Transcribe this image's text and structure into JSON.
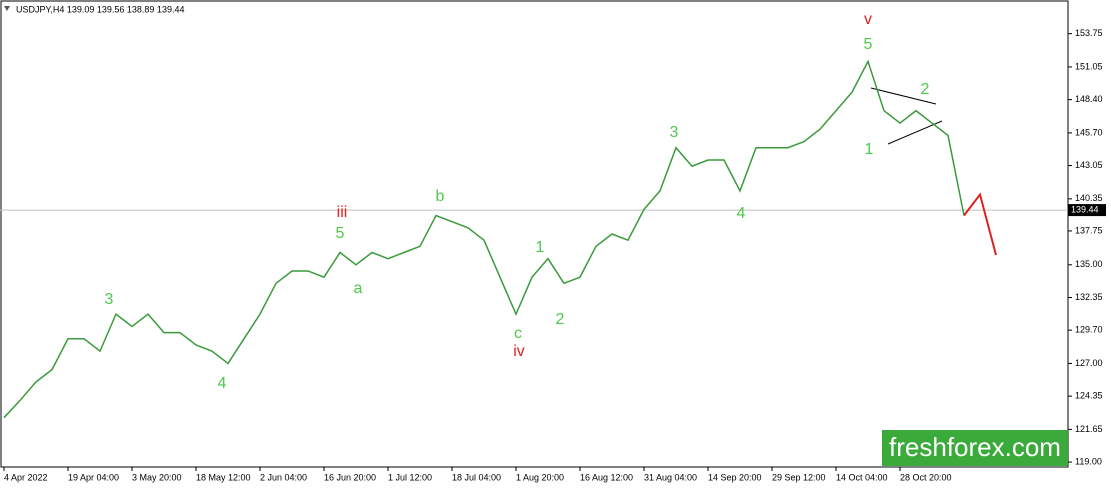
{
  "chart_data": {
    "type": "line",
    "title": "USDJPY,H4  139.09 139.56 138.89 139.44",
    "categories": [
      "4 Apr 2022",
      null,
      null,
      null,
      "19 Apr 04:00",
      null,
      null,
      null,
      "3 May 20:00",
      null,
      null,
      null,
      "18 May 12:00",
      null,
      null,
      null,
      "2 Jun 04:00",
      null,
      null,
      null,
      "16 Jun 20:00",
      null,
      null,
      null,
      "1 Jul 12:00",
      null,
      null,
      null,
      "18 Jul 04:00",
      null,
      null,
      null,
      "1 Aug 20:00",
      null,
      null,
      null,
      "16 Aug 12:00",
      null,
      null,
      null,
      "31 Aug 04:00",
      null,
      null,
      null,
      "14 Sep 20:00",
      null,
      null,
      null,
      "29 Sep 12:00",
      null,
      null,
      null,
      "14 Oct 04:00",
      null,
      null,
      null,
      "28 Oct 20:00",
      null,
      null,
      null,
      null,
      null,
      null
    ],
    "series": [
      {
        "color": "#3a9a3a",
        "values": [
          122.6,
          124,
          125.5,
          126.5,
          129,
          129,
          128,
          131,
          130,
          131,
          129.5,
          129.5,
          128.5,
          128,
          127,
          129,
          131,
          133.5,
          134.5,
          134.5,
          134,
          136,
          135,
          136,
          135.5,
          136,
          136.5,
          139,
          138.5,
          138,
          137,
          134,
          131,
          134,
          135.5,
          133.5,
          134,
          136.5,
          137.5,
          137,
          139.5,
          141,
          144.5,
          143,
          143.5,
          143.5,
          141,
          144.5,
          144.5,
          144.5,
          145,
          146,
          147.5,
          149,
          151.5,
          147.5,
          146.5,
          147.5,
          146.5,
          145.5,
          139,
          null,
          null
        ]
      },
      {
        "color": "#e0201e",
        "values": [
          null,
          null,
          null,
          null,
          null,
          null,
          null,
          null,
          null,
          null,
          null,
          null,
          null,
          null,
          null,
          null,
          null,
          null,
          null,
          null,
          null,
          null,
          null,
          null,
          null,
          null,
          null,
          null,
          null,
          null,
          null,
          null,
          null,
          null,
          null,
          null,
          null,
          null,
          null,
          null,
          null,
          null,
          null,
          null,
          null,
          null,
          null,
          null,
          null,
          null,
          null,
          null,
          null,
          null,
          null,
          null,
          null,
          null,
          null,
          null,
          139,
          140.7,
          135.8
        ]
      }
    ],
    "ylim": [
      118.6,
      156.4
    ],
    "yticks": [
      {
        "value": 119,
        "label": "119.00"
      },
      {
        "value": 121.65,
        "label": "121.65"
      },
      {
        "value": 124.35,
        "label": "124.35"
      },
      {
        "value": 127,
        "label": "127.00"
      },
      {
        "value": 129.7,
        "label": "129.70"
      },
      {
        "value": 132.35,
        "label": "132.35"
      },
      {
        "value": 135,
        "label": "135.00"
      },
      {
        "value": 137.75,
        "label": "137.75"
      },
      {
        "value": 140.35,
        "label": "140.35"
      },
      {
        "value": 143.05,
        "label": "143.05"
      },
      {
        "value": 145.7,
        "label": "145.70"
      },
      {
        "value": 148.4,
        "label": "148.40"
      },
      {
        "value": 151.05,
        "label": "151.05"
      },
      {
        "value": 153.75,
        "label": "153.75"
      }
    ],
    "current_price": 139.44,
    "annotations": [
      {
        "text": "v",
        "color": "#e0201e"
      },
      {
        "text": "5",
        "color": "#4ec94e"
      },
      {
        "text": "2",
        "color": "#4ec94e"
      },
      {
        "text": "1",
        "color": "#4ec94e"
      },
      {
        "text": "4",
        "color": "#4ec94e"
      },
      {
        "text": "3",
        "color": "#4ec94e"
      },
      {
        "text": "b",
        "color": "#4ec94e"
      },
      {
        "text": "iii",
        "color": "#e0201e"
      },
      {
        "text": "5",
        "color": "#4ec94e"
      },
      {
        "text": "a",
        "color": "#4ec94e"
      },
      {
        "text": "1",
        "color": "#4ec94e"
      },
      {
        "text": "c",
        "color": "#4ec94e"
      },
      {
        "text": "iv",
        "color": "#e0201e"
      },
      {
        "text": "2",
        "color": "#4ec94e"
      },
      {
        "text": "3",
        "color": "#4ec94e"
      },
      {
        "text": "4",
        "color": "#4ec94e"
      }
    ],
    "watermark": "freshforex.com"
  }
}
